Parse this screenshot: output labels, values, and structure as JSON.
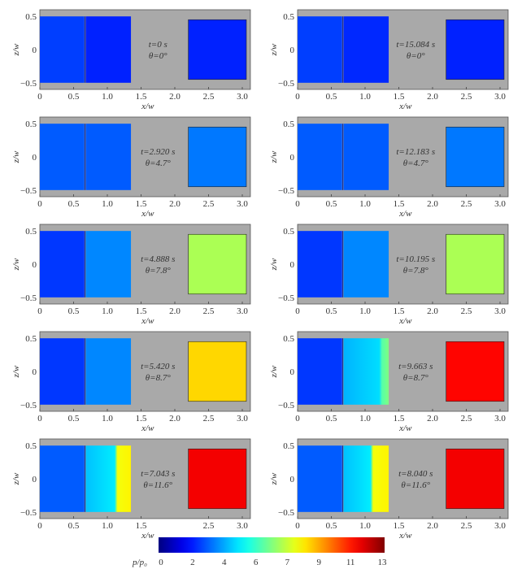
{
  "chart_data": {
    "type": "heatmap",
    "xlabel": "x/w",
    "ylabel": "z/w",
    "xlim": [
      0,
      3.12
    ],
    "ylim": [
      -0.6,
      0.6
    ],
    "xticks": [
      "0",
      "0.5",
      "1.0",
      "1.5",
      "2.0",
      "2.5",
      "3.0"
    ],
    "yticks": [
      "0.5",
      "0",
      "−0.5"
    ],
    "background_color": "#a9a9a9",
    "colorbar": {
      "label": "p/p₀",
      "ticks": [
        0,
        2,
        4,
        6,
        7,
        9,
        11,
        13
      ],
      "colormap": "jet"
    },
    "panels": [
      {
        "column": "left",
        "row": 1,
        "time_label": "t=0 s",
        "angle_label": "θ=0°",
        "upstream_value": 2.6,
        "downstream_value": 2.2,
        "front_x": null,
        "front_value": null,
        "tank_value": 2.2
      },
      {
        "column": "right",
        "row": 1,
        "time_label": "t=15.084 s",
        "angle_label": "θ=0°",
        "upstream_value": 2.6,
        "downstream_value": 2.3,
        "front_x": null,
        "front_value": null,
        "tank_value": 2.2
      },
      {
        "column": "left",
        "row": 2,
        "time_label": "t=2.920 s",
        "angle_label": "θ=4.7°",
        "upstream_value": 3.0,
        "downstream_value": 3.0,
        "front_x": null,
        "front_value": null,
        "tank_value": 3.4
      },
      {
        "column": "right",
        "row": 2,
        "time_label": "t=12.183 s",
        "angle_label": "θ=4.7°",
        "upstream_value": 3.0,
        "downstream_value": 3.0,
        "front_x": null,
        "front_value": null,
        "tank_value": 3.4
      },
      {
        "column": "left",
        "row": 3,
        "time_label": "t=4.888 s",
        "angle_label": "θ=7.8°",
        "upstream_value": 2.5,
        "downstream_value": 3.6,
        "front_x": null,
        "front_value": null,
        "tank_value": 6.8
      },
      {
        "column": "right",
        "row": 3,
        "time_label": "t=10.195 s",
        "angle_label": "θ=7.8°",
        "upstream_value": 2.5,
        "downstream_value": 3.6,
        "front_x": null,
        "front_value": null,
        "tank_value": 6.8
      },
      {
        "column": "left",
        "row": 4,
        "time_label": "t=5.420 s",
        "angle_label": "θ=8.7°",
        "upstream_value": 2.5,
        "downstream_value": 3.6,
        "front_x": null,
        "front_value": null,
        "tank_value": 8.3
      },
      {
        "column": "right",
        "row": 4,
        "time_label": "t=9.663 s",
        "angle_label": "θ=8.7°",
        "upstream_value": 2.5,
        "downstream_value": 4.2,
        "front_x": 1.25,
        "front_value": 6.2,
        "tank_value": 11.2
      },
      {
        "column": "left",
        "row": 5,
        "time_label": "t=7.043 s",
        "angle_label": "θ=11.6°",
        "upstream_value": 3.0,
        "downstream_value": 4.4,
        "front_x": 1.15,
        "front_value": 7.6,
        "tank_value": 11.4
      },
      {
        "column": "right",
        "row": 5,
        "time_label": "t=8.040 s",
        "angle_label": "θ=11.6°",
        "upstream_value": 3.0,
        "downstream_value": 4.4,
        "front_x": 1.12,
        "front_value": 7.6,
        "tank_value": 11.4
      }
    ]
  }
}
